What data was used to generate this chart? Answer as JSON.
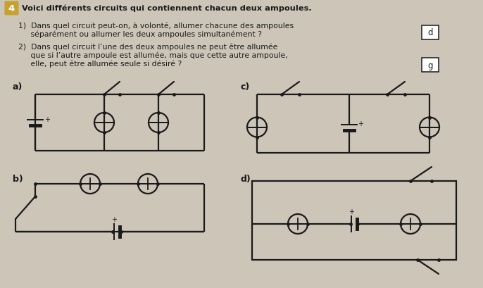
{
  "bg_color": "#cdc5b8",
  "line_color": "#1a1a1a",
  "title_num": "4",
  "badge_color": "#c8a030",
  "title": "Voici différents circuits qui contiennent chacun deux ampoules.",
  "q1_line1": "1)  Dans quel circuit peut-on, à volonté, allumer chacune des ampoules",
  "q1_line2": "     séparément ou allumer les deux ampoules simultanément ?",
  "q2_line1": "2)  Dans quel circuit l’une des deux ampoules ne peut être allumée",
  "q2_line2": "     que si l’autre ampoule est allumée, mais que cette autre ampoule,",
  "q2_line3": "     elle, peut être allumée seule si désiré ?",
  "ans1": "d",
  "ans2": "g",
  "labels": [
    "a)",
    "b)",
    "c)",
    "d)"
  ],
  "lw": 1.6,
  "bulb_r": 14
}
